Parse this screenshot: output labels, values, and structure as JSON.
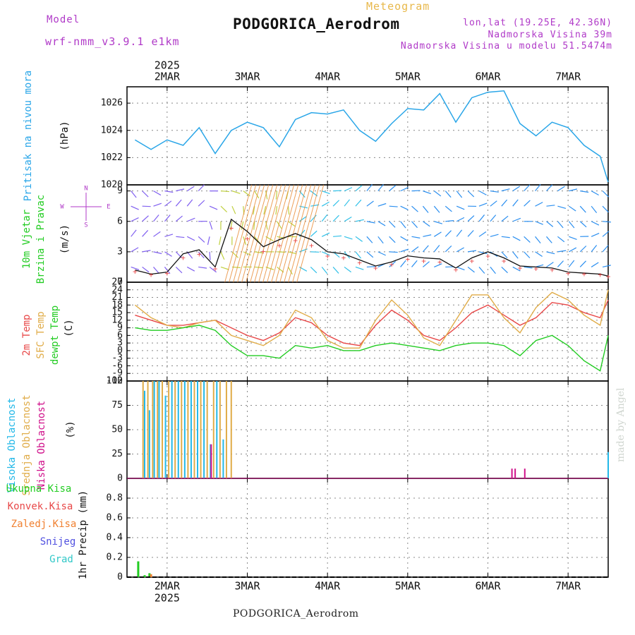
{
  "header": {
    "model_label": "Model",
    "model_name": "wrf-nmm_v3.9.1 e1km",
    "meteogram_label": "Meteogram",
    "station": "PODGORICA_Aerodrom",
    "coordinates": "lon,lat (19.25E, 42.36N)",
    "elevation": "Nadmorska Visina 39m",
    "model_elevation": "Nadmorska Visina u modelu 51.5474m"
  },
  "footer": {
    "station": "PODGORICA_Aerodrom",
    "credit": "made by Angel"
  },
  "time_axis": {
    "year": "2025",
    "days": [
      "2MAR",
      "3MAR",
      "4MAR",
      "5MAR",
      "6MAR",
      "7MAR"
    ]
  },
  "colors": {
    "pressure": "#2aa6e8",
    "temp2m": "#e84848",
    "sfc_temp": "#e0ac48",
    "dewpoint": "#22cc22",
    "high_cloud": "#22b8e8",
    "mid_cloud": "#e0ac48",
    "low_cloud": "#d0108a",
    "total_precip": "#22cc22",
    "conv_precip": "#e84848",
    "frozen_precip": "#f08030",
    "snow": "#5050e0",
    "graupel": "#30c8c8",
    "label_purple": "#b03ac8"
  },
  "chart_data": [
    {
      "type": "line",
      "panel": "pressure",
      "ylabel_rotated": "Pritisak na nivou mora",
      "unit": "(hPa)",
      "ylim": [
        1020,
        1027.2
      ],
      "yticks": [
        "1020",
        "1022",
        "1024",
        "1026"
      ],
      "grid": true,
      "x_days": [
        1.6,
        1.8,
        2.0,
        2.2,
        2.4,
        2.6,
        2.8,
        3.0,
        3.2,
        3.4,
        3.6,
        3.8,
        4.0,
        4.2,
        4.4,
        4.6,
        4.8,
        5.0,
        5.2,
        5.4,
        5.6,
        5.8,
        6.0,
        6.2,
        6.4,
        6.6,
        6.8,
        7.0,
        7.2,
        7.4,
        7.5
      ],
      "series": [
        {
          "values": [
            1023.3,
            1022.6,
            1023.3,
            1022.9,
            1024.2,
            1022.3,
            1024.0,
            1024.6,
            1024.2,
            1022.8,
            1024.8,
            1025.3,
            1025.2,
            1025.5,
            1024.0,
            1023.2,
            1024.5,
            1025.6,
            1025.5,
            1026.7,
            1024.6,
            1026.4,
            1026.8,
            1026.9,
            1024.5,
            1023.6,
            1024.6,
            1024.2,
            1022.9,
            1022.1,
            1020.2
          ]
        }
      ]
    },
    {
      "type": "line",
      "panel": "wind",
      "ylabel_rotated": [
        "10m Vjetar",
        "Brzina i Pravac"
      ],
      "unit": "(m/s)",
      "compass": {
        "n": "N",
        "s": "S",
        "e": "E",
        "w": "W"
      },
      "ylim": [
        0,
        9.6
      ],
      "yticks": [
        "0",
        "3",
        "6",
        "9"
      ],
      "grid": true,
      "x_days": [
        1.6,
        1.8,
        2.0,
        2.2,
        2.4,
        2.6,
        2.8,
        3.0,
        3.2,
        3.4,
        3.6,
        3.8,
        4.0,
        4.2,
        4.4,
        4.6,
        4.8,
        5.0,
        5.2,
        5.4,
        5.6,
        5.8,
        6.0,
        6.2,
        6.4,
        6.6,
        6.8,
        7.0,
        7.2,
        7.4,
        7.5
      ],
      "series": [
        {
          "name": "",
          "values": [
            1.2,
            0.8,
            1.0,
            2.8,
            3.2,
            1.5,
            6.2,
            5.0,
            3.5,
            4.2,
            4.8,
            4.2,
            3.0,
            2.8,
            2.2,
            1.6,
            2.0,
            2.6,
            2.4,
            2.3,
            1.4,
            2.4,
            3.0,
            2.4,
            1.6,
            1.5,
            1.4,
            1.0,
            0.9,
            0.8,
            0.6
          ]
        }
      ]
    },
    {
      "type": "line",
      "panel": "temperature",
      "ylabels_rotated": [
        "2m Temp",
        "SFC Temp",
        "dewpt Temp"
      ],
      "unit": "(C)",
      "ylim": [
        -12,
        27
      ],
      "yticks": [
        "-12",
        "-9",
        "-6",
        "-3",
        "0",
        "3",
        "6",
        "9",
        "12",
        "15",
        "18",
        "21",
        "24",
        "27"
      ],
      "grid": true,
      "x_days": [
        1.6,
        1.8,
        2.0,
        2.2,
        2.4,
        2.6,
        2.8,
        3.0,
        3.2,
        3.4,
        3.6,
        3.8,
        4.0,
        4.2,
        4.4,
        4.6,
        4.8,
        5.0,
        5.2,
        5.4,
        5.6,
        5.8,
        6.0,
        6.2,
        6.4,
        6.6,
        6.8,
        7.0,
        7.2,
        7.4,
        7.5
      ],
      "series": [
        {
          "name": "2m Temp",
          "values": [
            14,
            12,
            10,
            10,
            11,
            12,
            9,
            6,
            4,
            7,
            13,
            11,
            6,
            3,
            2,
            10,
            16,
            12,
            6,
            4,
            9,
            15,
            18,
            14,
            10,
            13,
            19,
            18,
            15,
            13,
            20
          ]
        },
        {
          "name": "SFC Temp",
          "values": [
            18,
            13,
            10,
            9,
            11,
            12,
            6,
            4,
            2,
            6,
            16,
            13,
            4,
            1,
            1,
            12,
            20,
            14,
            5,
            2,
            12,
            22,
            22,
            13,
            7,
            17,
            23,
            20,
            14,
            10,
            24
          ]
        },
        {
          "name": "dewpt Temp",
          "values": [
            9,
            8,
            8,
            9,
            10,
            8,
            2,
            -2,
            -2,
            -3,
            2,
            1,
            2,
            0,
            0,
            2,
            3,
            2,
            1,
            0,
            2,
            3,
            3,
            2,
            -2,
            4,
            6,
            2,
            -4,
            -8,
            6
          ]
        }
      ]
    },
    {
      "type": "bar",
      "panel": "cloud",
      "ylabels_rotated": [
        "Visoka Oblacnost",
        "Srednja Oblacnost",
        "Niska Oblacnost"
      ],
      "unit": "(%)",
      "ylim": [
        0,
        100
      ],
      "yticks": [
        "0",
        "25",
        "50",
        "75",
        "100"
      ],
      "grid": true,
      "series": [
        {
          "name": "Visoka Oblacnost",
          "x_days": [
            1.72,
            1.78,
            1.84,
            1.9,
            1.98,
            2.06,
            2.14,
            2.22,
            2.3,
            2.38,
            2.46,
            2.54,
            2.62,
            2.7,
            7.5
          ],
          "values": [
            90,
            70,
            100,
            100,
            85,
            100,
            100,
            100,
            100,
            100,
            100,
            35,
            100,
            40,
            27
          ]
        },
        {
          "name": "Srednja Oblacnost",
          "x_days": [
            1.7,
            1.76,
            1.82,
            1.88,
            1.94,
            2.02,
            2.1,
            2.18,
            2.26,
            2.34,
            2.42,
            2.5,
            2.58,
            2.66,
            2.74,
            2.8
          ],
          "values": [
            100,
            100,
            100,
            100,
            100,
            100,
            100,
            100,
            100,
            100,
            100,
            100,
            100,
            100,
            100,
            100
          ]
        },
        {
          "name": "Niska Oblacnost",
          "x_days": [
            2.55,
            6.3,
            6.34,
            6.46
          ],
          "values": [
            35,
            10,
            10,
            10
          ]
        }
      ]
    },
    {
      "type": "bar",
      "panel": "precipitation",
      "legend": [
        "Ukupna Kisa",
        "Konvek.Kisa",
        "Zaledj.Kisa",
        "Snijeg",
        "Grad"
      ],
      "ylabel": "1hr Precip (mm)",
      "ylim": [
        0,
        1.0
      ],
      "yticks": [
        "0",
        "0.2",
        "0.4",
        "0.6",
        "0.8"
      ],
      "grid": true,
      "series": [
        {
          "name": "Ukupna Kisa",
          "x_days": [
            1.64,
            1.72,
            1.78
          ],
          "values": [
            0.16,
            0.02,
            0.04
          ]
        },
        {
          "name": "Zaledj.Kisa",
          "x_days": [
            1.8
          ],
          "values": [
            0.03
          ]
        }
      ]
    }
  ]
}
